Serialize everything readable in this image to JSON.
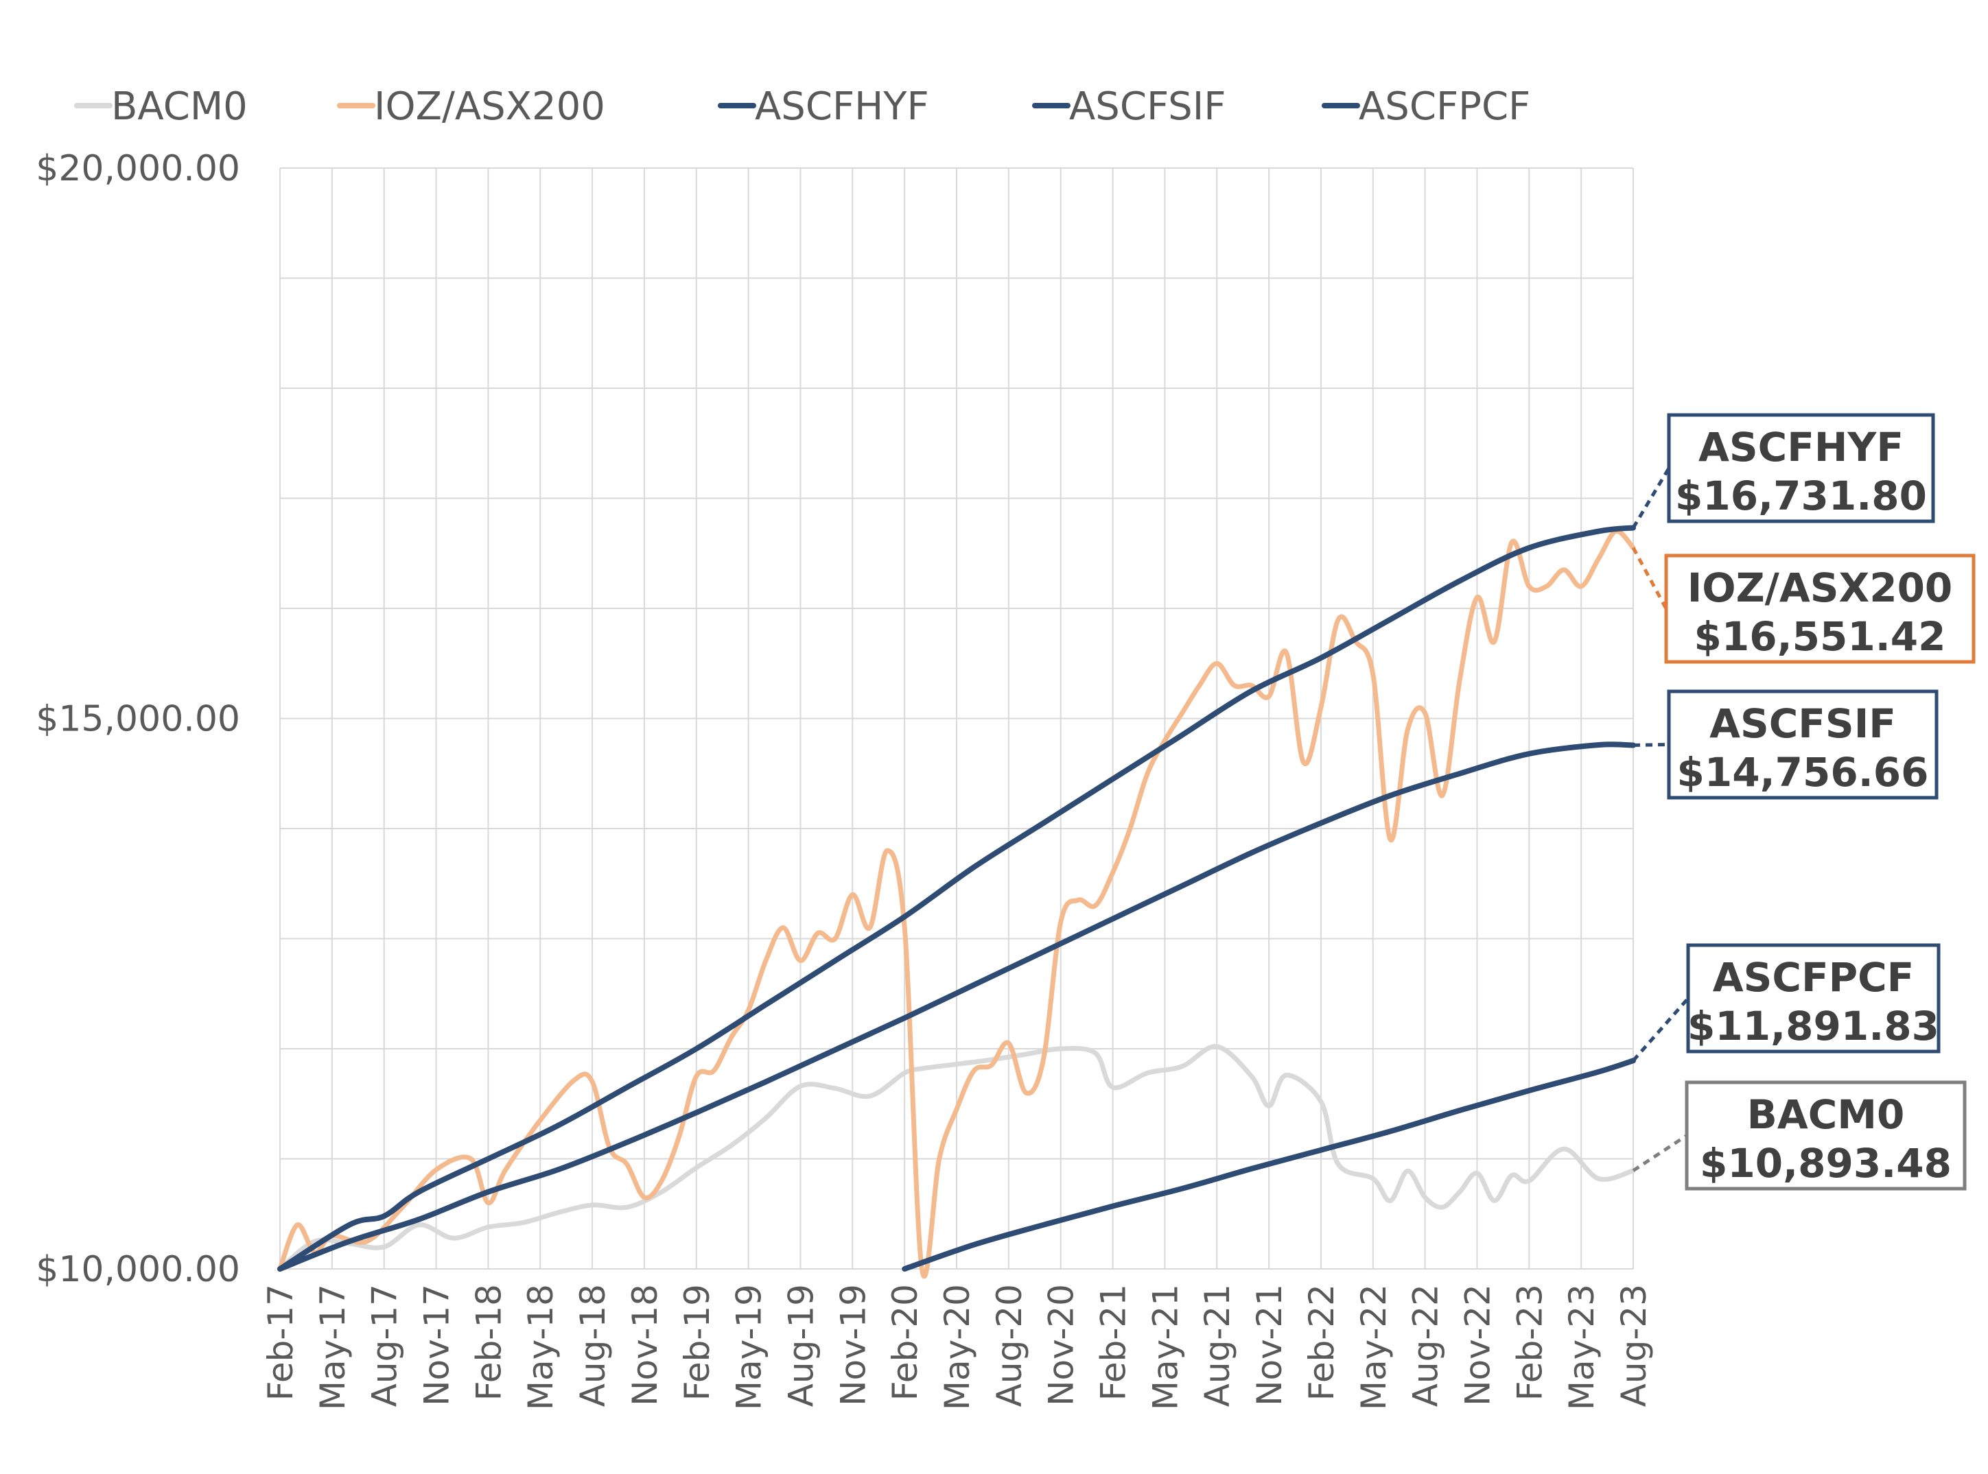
{
  "chart_data": {
    "type": "line",
    "title": "",
    "xlabel": "",
    "ylabel": "",
    "ylim": [
      10000,
      20000
    ],
    "y_ticks": [
      "$10,000.00",
      "$15,000.00",
      "$20,000.00"
    ],
    "y_tick_values": [
      10000,
      15000,
      20000
    ],
    "x_range": [
      "2017-02",
      "2023-08"
    ],
    "x_tick_labels": [
      "Feb-17",
      "May-17",
      "Aug-17",
      "Nov-17",
      "Feb-18",
      "May-18",
      "Aug-18",
      "Nov-18",
      "Feb-19",
      "May-19",
      "Aug-19",
      "Nov-19",
      "Feb-20",
      "May-20",
      "Aug-20",
      "Nov-20",
      "Feb-21",
      "May-21",
      "Aug-21",
      "Nov-21",
      "Feb-22",
      "May-22",
      "Aug-22",
      "Nov-22",
      "Feb-23",
      "May-23",
      "Aug-23"
    ],
    "x_tick_dates": [
      "2017-02",
      "2017-05",
      "2017-08",
      "2017-11",
      "2018-02",
      "2018-05",
      "2018-08",
      "2018-11",
      "2019-02",
      "2019-05",
      "2019-08",
      "2019-11",
      "2020-02",
      "2020-05",
      "2020-08",
      "2020-11",
      "2021-02",
      "2021-05",
      "2021-08",
      "2021-11",
      "2022-02",
      "2022-05",
      "2022-08",
      "2022-11",
      "2023-02",
      "2023-05",
      "2023-08"
    ],
    "grid": true,
    "legend_placement": "top",
    "series": [
      {
        "name": "BACM0",
        "color": "#d9d9d9",
        "x": [
          "2017-02",
          "2017-04",
          "2017-06",
          "2017-08",
          "2017-10",
          "2017-12",
          "2018-02",
          "2018-04",
          "2018-06",
          "2018-08",
          "2018-10",
          "2018-12",
          "2019-02",
          "2019-04",
          "2019-06",
          "2019-08",
          "2019-10",
          "2019-12",
          "2020-02",
          "2020-03",
          "2020-05",
          "2020-07",
          "2020-09",
          "2020-11",
          "2021-01",
          "2021-02",
          "2021-04",
          "2021-06",
          "2021-08",
          "2021-10",
          "2021-11",
          "2021-12",
          "2022-02",
          "2022-03",
          "2022-05",
          "2022-06",
          "2022-07",
          "2022-08",
          "2022-09",
          "2022-10",
          "2022-11",
          "2022-12",
          "2023-01",
          "2023-02",
          "2023-04",
          "2023-06",
          "2023-08"
        ],
        "values": [
          10000,
          10250,
          10230,
          10200,
          10400,
          10280,
          10380,
          10420,
          10510,
          10580,
          10560,
          10700,
          10920,
          11120,
          11370,
          11660,
          11640,
          11570,
          11780,
          11820,
          11860,
          11900,
          11950,
          12000,
          11960,
          11650,
          11780,
          11840,
          12020,
          11750,
          11480,
          11760,
          11520,
          10950,
          10820,
          10620,
          10890,
          10650,
          10560,
          10700,
          10870,
          10620,
          10850,
          10800,
          11090,
          10820,
          10893
        ]
      },
      {
        "name": "IOZ/ASX200",
        "color": "#f4b98c",
        "x": [
          "2017-02",
          "2017-03",
          "2017-04",
          "2017-05",
          "2017-07",
          "2017-09",
          "2017-11",
          "2018-01",
          "2018-02",
          "2018-03",
          "2018-05",
          "2018-07",
          "2018-08",
          "2018-09",
          "2018-10",
          "2018-11",
          "2018-12",
          "2019-01",
          "2019-02",
          "2019-03",
          "2019-04",
          "2019-05",
          "2019-06",
          "2019-07",
          "2019-08",
          "2019-09",
          "2019-10",
          "2019-11",
          "2019-12",
          "2020-01",
          "2020-02",
          "2020-03",
          "2020-04",
          "2020-05",
          "2020-06",
          "2020-07",
          "2020-08",
          "2020-09",
          "2020-10",
          "2020-11",
          "2020-12",
          "2021-01",
          "2021-02",
          "2021-03",
          "2021-04",
          "2021-05",
          "2021-06",
          "2021-07",
          "2021-08",
          "2021-09",
          "2021-10",
          "2021-11",
          "2021-12",
          "2022-01",
          "2022-02",
          "2022-03",
          "2022-04",
          "2022-05",
          "2022-06",
          "2022-07",
          "2022-08",
          "2022-09",
          "2022-10",
          "2022-11",
          "2022-12",
          "2023-01",
          "2023-02",
          "2023-03",
          "2023-04",
          "2023-05",
          "2023-06",
          "2023-07",
          "2023-08"
        ],
        "values": [
          10000,
          10400,
          10150,
          10300,
          10250,
          10550,
          10900,
          11000,
          10600,
          10900,
          11350,
          11720,
          11700,
          11100,
          10950,
          10650,
          10800,
          11200,
          11750,
          11800,
          12100,
          12350,
          12800,
          13100,
          12800,
          13050,
          13000,
          13400,
          13100,
          13800,
          13100,
          10000,
          11000,
          11450,
          11800,
          11850,
          12050,
          11600,
          11900,
          13150,
          13350,
          13300,
          13600,
          14000,
          14500,
          14800,
          15050,
          15300,
          15500,
          15300,
          15300,
          15200,
          15600,
          14600,
          15100,
          15900,
          15700,
          15400,
          13900,
          14900,
          15050,
          14300,
          15350,
          16100,
          15700,
          16600,
          16200,
          16200,
          16350,
          16200,
          16450,
          16700,
          16551
        ]
      },
      {
        "name": "ASCFHYF",
        "color": "#2e4b73",
        "x": [
          "2017-02",
          "2017-06",
          "2017-08",
          "2017-10",
          "2018-02",
          "2018-06",
          "2018-10",
          "2019-02",
          "2019-06",
          "2019-10",
          "2020-02",
          "2020-06",
          "2020-10",
          "2021-02",
          "2021-06",
          "2021-10",
          "2022-02",
          "2022-06",
          "2022-10",
          "2023-02",
          "2023-06",
          "2023-08"
        ],
        "values": [
          10000,
          10400,
          10480,
          10700,
          11000,
          11300,
          11650,
          12000,
          12400,
          12800,
          13200,
          13650,
          14050,
          14450,
          14850,
          15250,
          15550,
          15900,
          16250,
          16550,
          16700,
          16732
        ]
      },
      {
        "name": "ASCFSIF",
        "color": "#2e4b73",
        "x": [
          "2017-02",
          "2017-06",
          "2017-10",
          "2018-02",
          "2018-06",
          "2018-10",
          "2019-02",
          "2019-06",
          "2019-10",
          "2020-02",
          "2020-06",
          "2020-10",
          "2021-02",
          "2021-06",
          "2021-10",
          "2022-02",
          "2022-06",
          "2022-10",
          "2023-02",
          "2023-06",
          "2023-08"
        ],
        "values": [
          10000,
          10250,
          10450,
          10700,
          10900,
          11150,
          11420,
          11700,
          11990,
          12280,
          12580,
          12880,
          13180,
          13480,
          13780,
          14050,
          14300,
          14500,
          14680,
          14760,
          14757
        ]
      },
      {
        "name": "ASCFPCF",
        "color": "#2e4b73",
        "x": [
          "2020-02",
          "2020-06",
          "2020-10",
          "2021-02",
          "2021-06",
          "2021-10",
          "2022-02",
          "2022-06",
          "2022-10",
          "2023-02",
          "2023-06",
          "2023-08"
        ],
        "values": [
          10000,
          10220,
          10400,
          10570,
          10730,
          10910,
          11080,
          11250,
          11440,
          11620,
          11790,
          11892
        ]
      }
    ],
    "callouts": [
      {
        "series": "ASCFHYF",
        "name": "ASCFHYF",
        "value": "$16,731.80",
        "border": "#2e4b73",
        "leader": "#2e4b73"
      },
      {
        "series": "IOZ/ASX200",
        "name": "IOZ/ASX200",
        "value": "$16,551.42",
        "border": "#e07b39",
        "leader": "#e07b39"
      },
      {
        "series": "ASCFSIF",
        "name": "ASCFSIF",
        "value": "$14,756.66",
        "border": "#2e4b73",
        "leader": "#2e4b73"
      },
      {
        "series": "ASCFPCF",
        "name": "ASCFPCF",
        "value": "$11,891.83",
        "border": "#2e4b73",
        "leader": "#2e4b73"
      },
      {
        "series": "BACM0",
        "name": "BACM0",
        "value": "$10,893.48",
        "border": "#7f7f7f",
        "leader": "#7f7f7f"
      }
    ]
  }
}
